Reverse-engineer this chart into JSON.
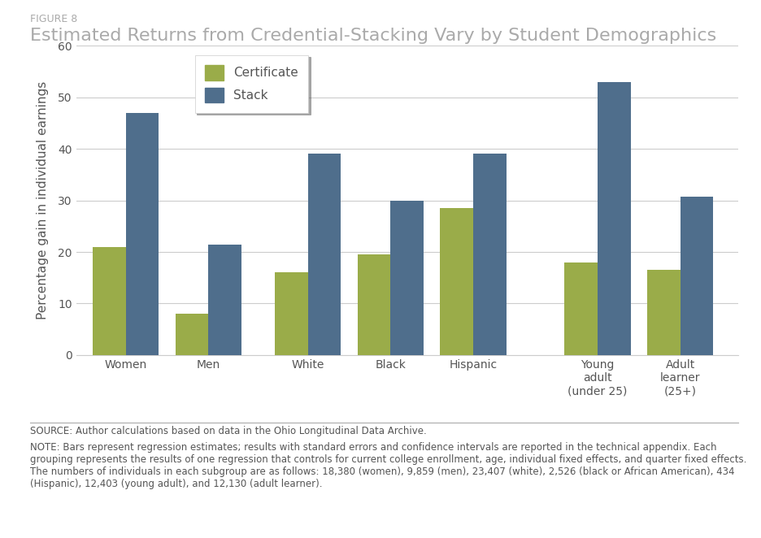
{
  "figure_label": "FIGURE 8",
  "title": "Estimated Returns from Credential-Stacking Vary by Student Demographics",
  "categories": [
    "Women",
    "Men",
    "White",
    "Black",
    "Hispanic",
    "Young\nadult\n(under 25)",
    "Adult\nlearner\n(25+)"
  ],
  "certificate_values": [
    21.0,
    8.0,
    16.0,
    19.5,
    28.5,
    18.0,
    16.5
  ],
  "stack_values": [
    47.0,
    21.5,
    39.0,
    30.0,
    39.0,
    53.0,
    30.7
  ],
  "certificate_color": "#9aac49",
  "stack_color": "#4f6e8c",
  "ylabel": "Percentage gain in individual earnings",
  "ylim": [
    0,
    60
  ],
  "yticks": [
    0,
    10,
    20,
    30,
    40,
    50,
    60
  ],
  "legend_labels": [
    "Certificate",
    "Stack"
  ],
  "source_text": "SOURCE: Author calculations based on data in the Ohio Longitudinal Data Archive.",
  "note_text": "NOTE: Bars represent regression estimates; results with standard errors and confidence intervals are reported in the technical appendix. Each\ngrouping represents the results of one regression that controls for current college enrollment, age, individual fixed effects, and quarter fixed effects.\nThe numbers of individuals in each subgroup are as follows: 18,380 (women), 9,859 (men), 23,407 (white), 2,526 (black or African American), 434\n(Hispanic), 12,403 (young adult), and 12,130 (adult learner).",
  "group_spacing": [
    0,
    1,
    2.2,
    3.2,
    4.2,
    5.7,
    6.7
  ],
  "bar_width": 0.4,
  "background_color": "#ffffff",
  "grid_color": "#cccccc",
  "figure_label_fontsize": 9,
  "title_fontsize": 16,
  "tick_fontsize": 10,
  "ylabel_fontsize": 11,
  "legend_fontsize": 11,
  "note_fontsize": 8.5
}
